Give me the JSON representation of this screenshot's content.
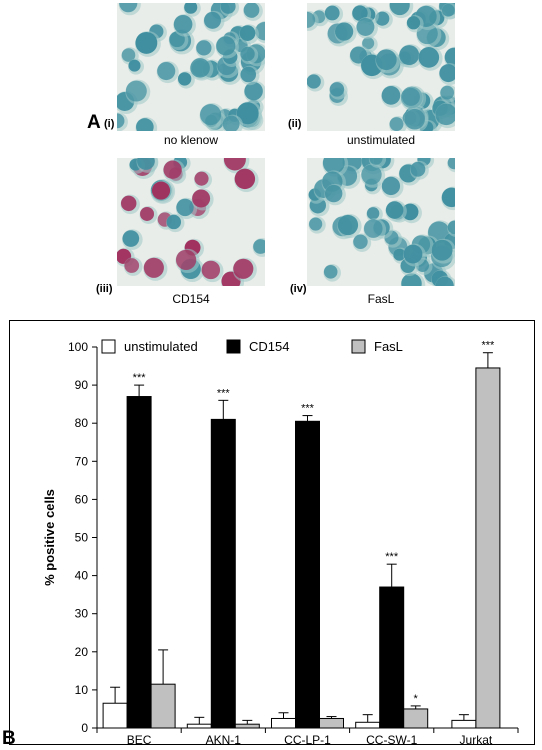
{
  "panel_a": {
    "label": "A",
    "images": [
      {
        "numeral": "(i)",
        "caption": "no klenow"
      },
      {
        "numeral": "(ii)",
        "caption": "unstimulated"
      },
      {
        "numeral": "(iii)",
        "caption": "CD154"
      },
      {
        "numeral": "(iv)",
        "caption": "FasL"
      }
    ],
    "colors": {
      "background": "#e9ede9",
      "nucleus_blue": "#3f8fa0",
      "nucleus_red": "#a0305e",
      "cytoplasm": "#9fc8c9"
    }
  },
  "panel_b": {
    "label": "B"
  },
  "chart_data": {
    "type": "bar",
    "categories": [
      "BEC",
      "AKN-1",
      "CC-LP-1",
      "CC-SW-1",
      "Jurkat"
    ],
    "ylabel": "% positive cells",
    "xlabel": "",
    "ylim": [
      0,
      100
    ],
    "yticks": [
      0,
      10,
      20,
      30,
      40,
      50,
      60,
      70,
      80,
      90,
      100
    ],
    "grid": false,
    "legend_placement": "top",
    "series": [
      {
        "name": "unstimulated",
        "color": "#ffffff",
        "values": [
          6.5,
          1.0,
          2.5,
          1.5,
          2.0
        ],
        "errors": [
          4.2,
          1.8,
          1.5,
          2.0,
          1.5
        ],
        "significance": [
          "",
          "",
          "",
          "",
          ""
        ]
      },
      {
        "name": "CD154",
        "color": "#000000",
        "values": [
          87,
          81,
          80.5,
          37,
          null
        ],
        "errors": [
          3,
          5,
          1.5,
          6,
          null
        ],
        "significance": [
          "***",
          "***",
          "***",
          "***",
          ""
        ]
      },
      {
        "name": "FasL",
        "color": "#c0c0c0",
        "values": [
          11.5,
          1.0,
          2.5,
          5.0,
          94.5
        ],
        "errors": [
          9,
          1,
          0.5,
          0.8,
          4
        ],
        "significance": [
          "",
          "",
          "",
          "*",
          "***"
        ]
      }
    ]
  }
}
